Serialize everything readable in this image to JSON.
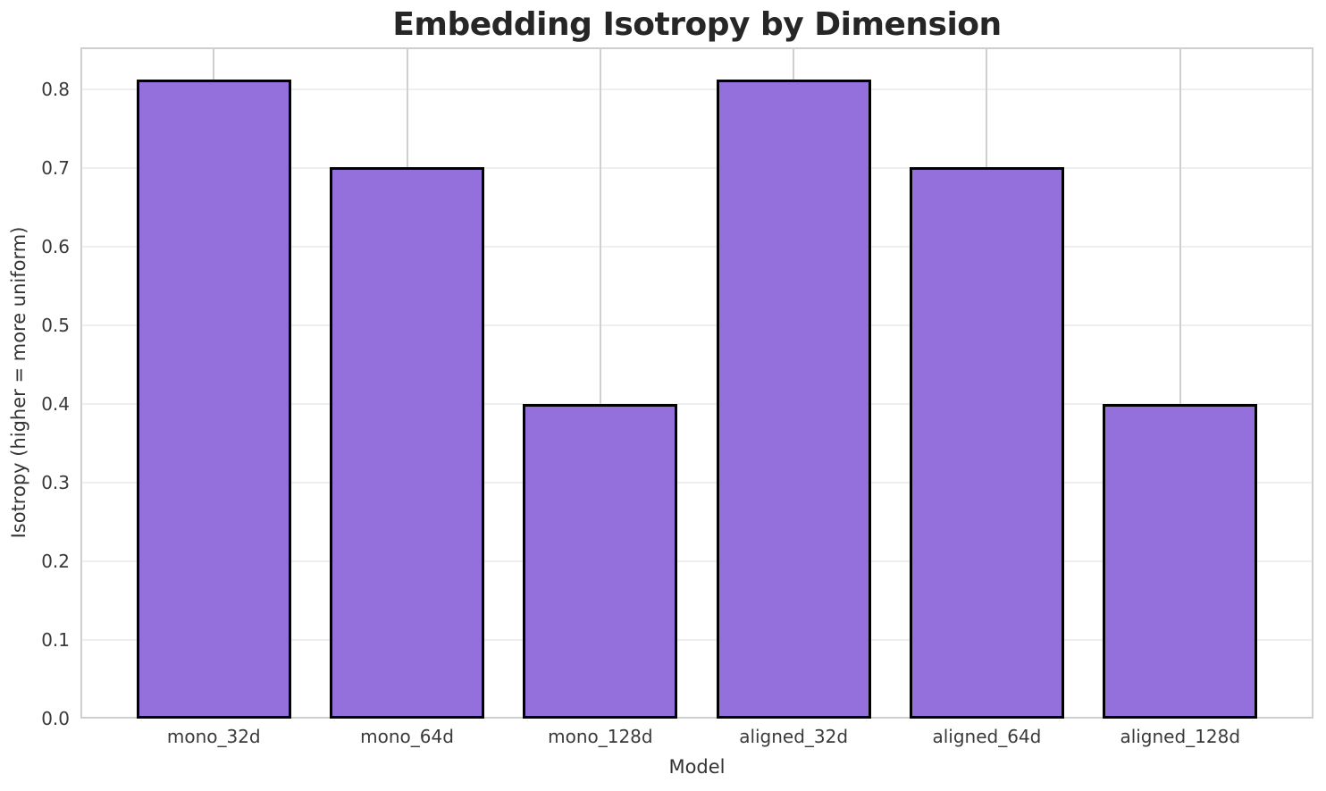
{
  "chart_data": {
    "type": "bar",
    "title": "Embedding Isotropy by Dimension",
    "xlabel": "Model",
    "ylabel": "Isotropy (higher = more uniform)",
    "categories": [
      "mono_32d",
      "mono_64d",
      "mono_128d",
      "aligned_32d",
      "aligned_64d",
      "aligned_128d"
    ],
    "values": [
      0.813,
      0.701,
      0.4,
      0.813,
      0.701,
      0.4
    ],
    "ylim": [
      0,
      0.8537
    ],
    "yticks": [
      0.0,
      0.1,
      0.2,
      0.3,
      0.4,
      0.5,
      0.6,
      0.7,
      0.8
    ],
    "ytick_decimals": 1,
    "grid": "both",
    "legend": "none",
    "colors": {
      "bar_fill": "#9370DB",
      "bar_edge": "#000000",
      "grid_horizontal": "#efefef",
      "grid_vertical": "#cfcfcf",
      "spine": "#cfcfcf",
      "title_text": "#262626",
      "tick_text": "#3a3a3a",
      "axis_label_text": "#333333",
      "background": "#ffffff"
    },
    "layout_hints": {
      "x_margin_units": 0.69,
      "x_span_units": 6.38,
      "bar_width_units": 0.8
    }
  }
}
